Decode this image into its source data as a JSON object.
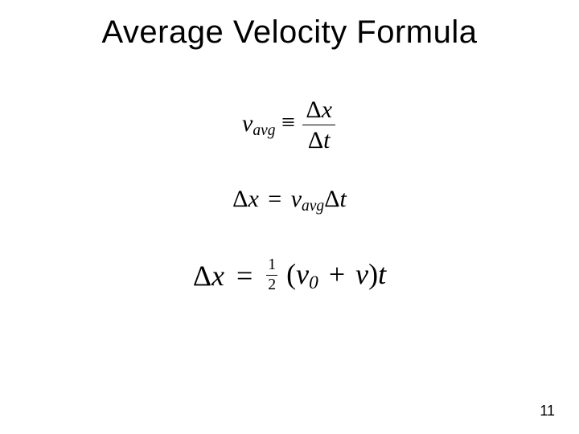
{
  "title": "Average Velocity Formula",
  "page_number": "11",
  "colors": {
    "background": "#ffffff",
    "text": "#000000"
  },
  "typography": {
    "title_font": "Arial",
    "title_size_pt": 30,
    "formula_font": "Times New Roman Italic",
    "eq1_size_pt": 22,
    "eq2_size_pt": 22,
    "eq3_size_pt": 27
  },
  "formulas": {
    "eq1": {
      "lhs_var": "v",
      "lhs_sub": "avg",
      "relation": "≡",
      "frac_num_delta": "Δ",
      "frac_num_var": "x",
      "frac_den_delta": "Δ",
      "frac_den_var": "t"
    },
    "eq2": {
      "lhs_delta": "Δ",
      "lhs_var": "x",
      "relation": "=",
      "rhs_var": "v",
      "rhs_sub": "avg",
      "rhs_delta": "Δ",
      "rhs_var2": "t"
    },
    "eq3": {
      "lhs_delta": "Δ",
      "lhs_var": "x",
      "relation": "=",
      "half_num": "1",
      "half_den": "2",
      "open_paren": "(",
      "term1_var": "v",
      "term1_sub": "0",
      "plus": "+",
      "term2_var": "v",
      "close_paren": ")",
      "tail_var": "t"
    }
  }
}
